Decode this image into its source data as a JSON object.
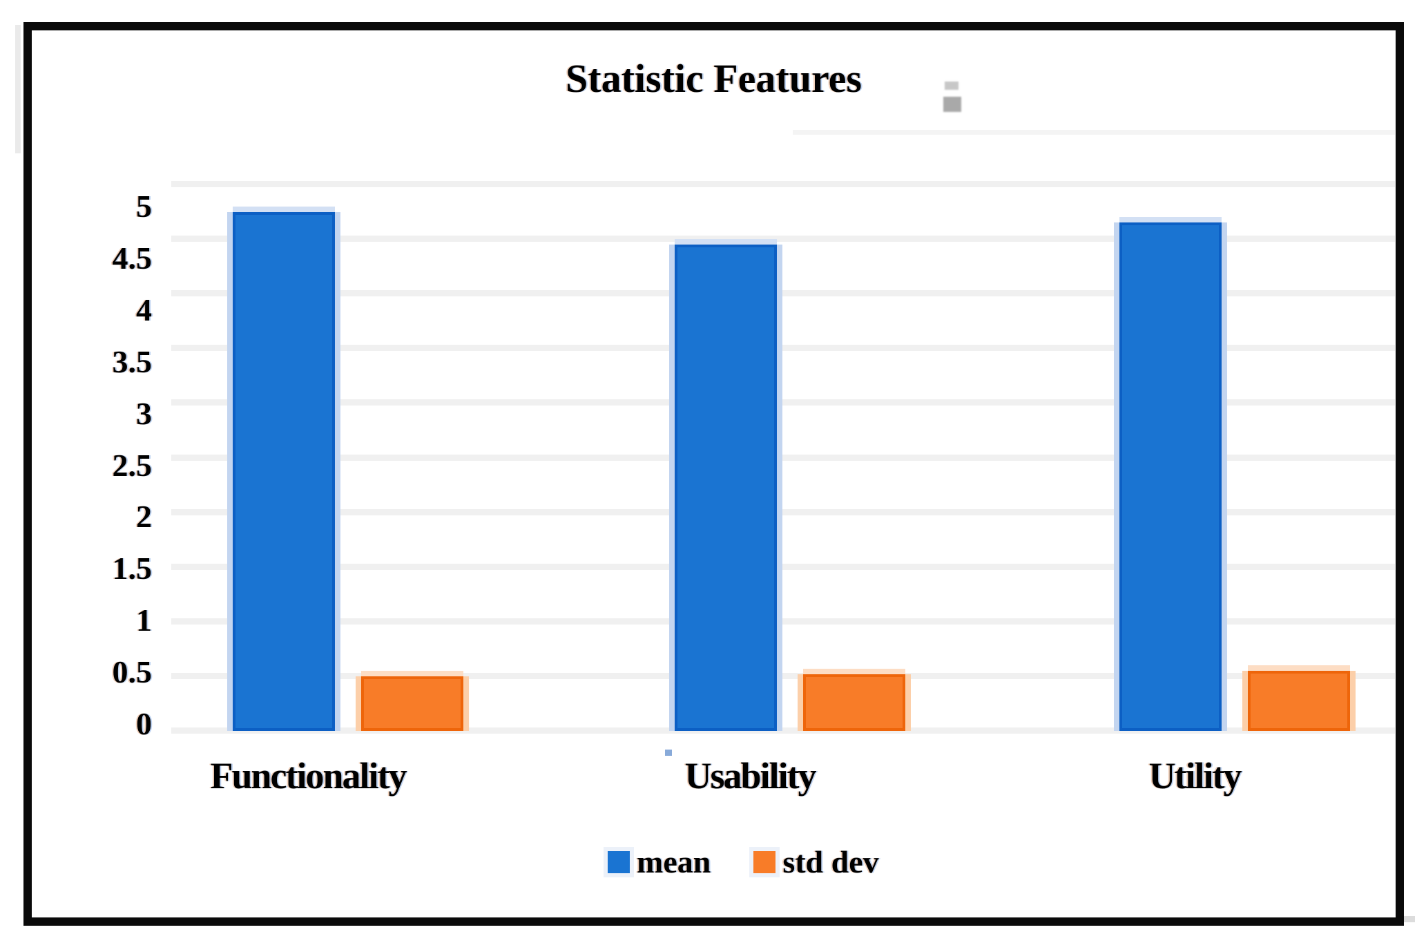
{
  "chart_data": {
    "type": "bar",
    "title": "Statistic Features",
    "categories": [
      "Functionality",
      "Usability",
      "Utility"
    ],
    "series": [
      {
        "name": "mean",
        "color": "#1A74D2",
        "edge_color": "#0C5FC4",
        "values": [
          4.75,
          4.45,
          4.65
        ]
      },
      {
        "name": "std dev",
        "color": "#F87C28",
        "edge_color": "#EE650A",
        "values": [
          0.5,
          0.52,
          0.55
        ]
      }
    ],
    "xlabel": "",
    "ylabel": "",
    "ylim": [
      0,
      5.5
    ],
    "yticks": [
      0,
      0.5,
      1,
      1.5,
      2,
      2.5,
      3,
      3.5,
      4,
      4.5,
      5
    ],
    "ytick_labels": [
      "0",
      "0.5",
      "1",
      "1.5",
      "2",
      "2.5",
      "3",
      "3.5",
      "4",
      "4.5",
      "5"
    ],
    "grid": true,
    "gridline_color": "#F0F0F0",
    "legend_position": "bottom-center"
  }
}
